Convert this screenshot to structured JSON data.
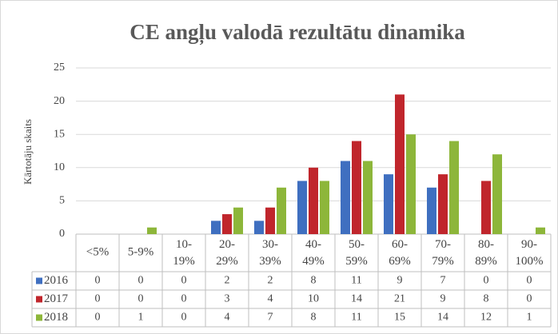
{
  "chart_data": {
    "type": "bar",
    "title": "CE angļu valodā rezultātu dinamika",
    "y_label": "Kārtotāju skaits",
    "categories": [
      "<5%",
      "5-9%",
      "10-19%",
      "20-29%",
      "30-39%",
      "40-49%",
      "50-59%",
      "60-69%",
      "70-79%",
      "80-89%",
      "90-100%"
    ],
    "series": [
      {
        "name": "2016",
        "color": "#3f6fc0",
        "values": [
          0,
          0,
          0,
          2,
          2,
          8,
          11,
          9,
          7,
          0,
          0
        ]
      },
      {
        "name": "2017",
        "color": "#c0262c",
        "values": [
          0,
          0,
          0,
          3,
          4,
          10,
          14,
          21,
          9,
          8,
          0
        ]
      },
      {
        "name": "2018",
        "color": "#8db63a",
        "values": [
          0,
          1,
          0,
          4,
          7,
          8,
          11,
          15,
          14,
          12,
          1
        ]
      }
    ],
    "ylim": [
      0,
      25
    ],
    "yticks": [
      0,
      5,
      10,
      15,
      20,
      25
    ],
    "grid": true
  }
}
